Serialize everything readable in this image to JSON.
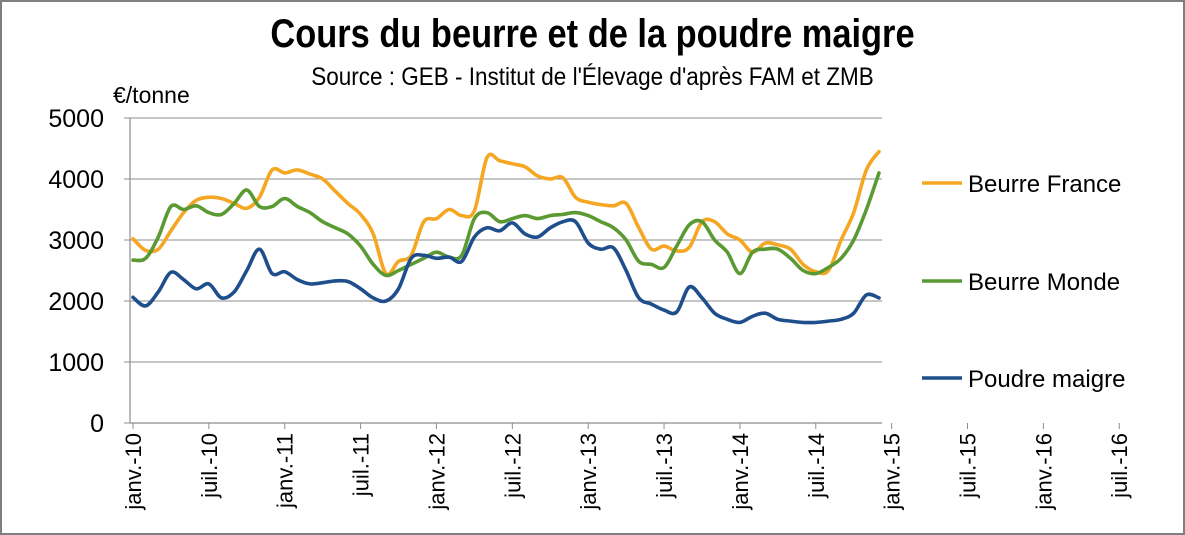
{
  "chart_data": {
    "type": "line",
    "title": "Cours du beurre et de la poudre maigre",
    "subtitle": "Source : GEB - Institut de l'Élevage d'après FAM et ZMB",
    "ylabel": "€/tonne",
    "ylim": [
      0,
      5000
    ],
    "yticks": [
      "0",
      "1000",
      "2000",
      "3000",
      "4000",
      "5000"
    ],
    "grid": true,
    "legend_position": "right",
    "x_tick_labels": [
      "janv.-10",
      "juil.-10",
      "janv.-11",
      "juil.-11",
      "janv.-12",
      "juil.-12",
      "janv.-13",
      "juil.-13",
      "janv.-14",
      "juil.-14",
      "janv.-15",
      "juil.-15",
      "janv.-16",
      "juil.-16"
    ],
    "x_start": "2010-01",
    "series": [
      {
        "name": "Beurre France",
        "color": "#f5a623",
        "values": [
          3020,
          2830,
          2850,
          3150,
          3450,
          3650,
          3700,
          3680,
          3600,
          3520,
          3700,
          4150,
          4100,
          4150,
          4080,
          4000,
          3800,
          3600,
          3420,
          3100,
          2450,
          2650,
          2750,
          3300,
          3350,
          3500,
          3400,
          3480,
          4350,
          4300,
          4250,
          4200,
          4050,
          4000,
          4020,
          3700,
          3620,
          3580,
          3560,
          3600,
          3200,
          2850,
          2900,
          2820,
          2880,
          3300,
          3300,
          3100,
          3000,
          2800,
          2950,
          2920,
          2850,
          2600,
          2480,
          2500,
          3000,
          3450,
          4150,
          4450
        ]
      },
      {
        "name": "Beurre Monde",
        "color": "#5b9a32",
        "values": [
          2670,
          2700,
          3050,
          3550,
          3500,
          3560,
          3450,
          3420,
          3600,
          3820,
          3550,
          3550,
          3680,
          3550,
          3450,
          3300,
          3200,
          3100,
          2900,
          2600,
          2420,
          2500,
          2600,
          2700,
          2800,
          2720,
          2750,
          3350,
          3450,
          3300,
          3350,
          3400,
          3350,
          3400,
          3420,
          3450,
          3400,
          3300,
          3200,
          3000,
          2650,
          2600,
          2550,
          2900,
          3250,
          3300,
          3000,
          2800,
          2450,
          2800,
          2850,
          2850,
          2700,
          2500,
          2450,
          2550,
          2700,
          3000,
          3500,
          4100
        ]
      },
      {
        "name": "Poudre maigre",
        "color": "#1f4e8c",
        "values": [
          2060,
          1920,
          2150,
          2470,
          2350,
          2200,
          2280,
          2050,
          2150,
          2500,
          2850,
          2450,
          2480,
          2350,
          2280,
          2300,
          2330,
          2320,
          2200,
          2050,
          2000,
          2200,
          2700,
          2750,
          2700,
          2720,
          2650,
          3050,
          3200,
          3150,
          3280,
          3100,
          3050,
          3200,
          3300,
          3300,
          2950,
          2850,
          2870,
          2500,
          2050,
          1950,
          1850,
          1820,
          2230,
          2050,
          1800,
          1700,
          1650,
          1750,
          1800,
          1700,
          1670,
          1650,
          1650,
          1670,
          1700,
          1800,
          2100,
          2050
        ]
      }
    ]
  }
}
